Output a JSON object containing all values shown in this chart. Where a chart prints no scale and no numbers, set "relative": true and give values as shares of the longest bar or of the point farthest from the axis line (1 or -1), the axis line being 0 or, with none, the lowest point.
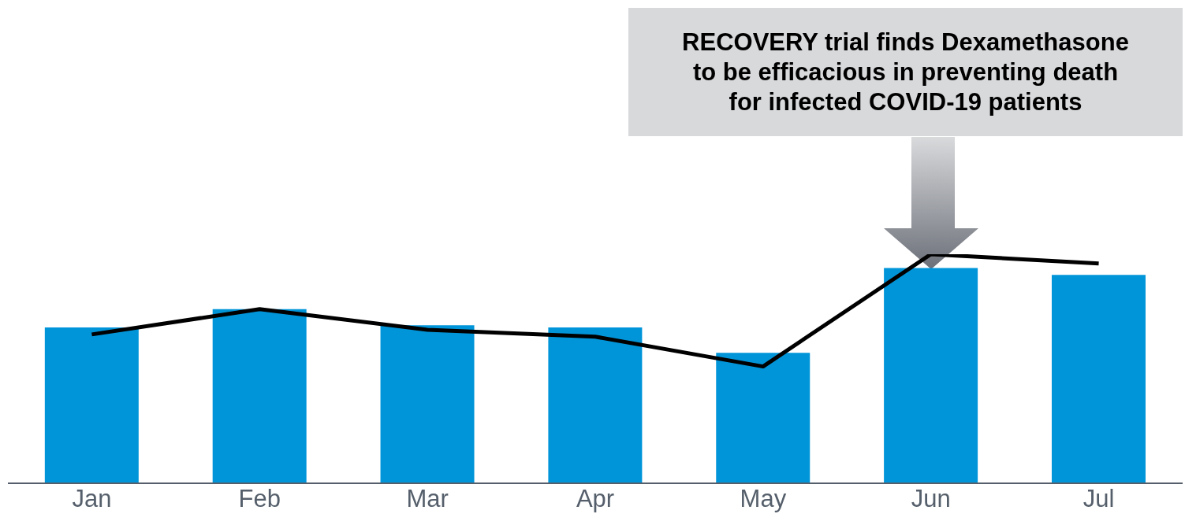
{
  "chart_data": {
    "type": "bar",
    "relative": true,
    "categories": [
      "Jan",
      "Feb",
      "Mar",
      "Apr",
      "May",
      "Jun",
      "Jul"
    ],
    "series": [
      {
        "color": "#0095d9",
        "values": [
          0.68,
          0.76,
          0.69,
          0.68,
          0.57,
          0.94,
          0.91
        ]
      },
      {
        "type": "line",
        "color": "#000000",
        "values": [
          0.65,
          0.76,
          0.67,
          0.64,
          0.51,
          1,
          0.96
        ]
      }
    ],
    "annotations": [
      "RECOVERY trial finds Dexamethasone\nto be efficacious in preventing death\nfor infected COVID-19 patients"
    ],
    "grid": false,
    "legend": false,
    "marker": "none"
  }
}
